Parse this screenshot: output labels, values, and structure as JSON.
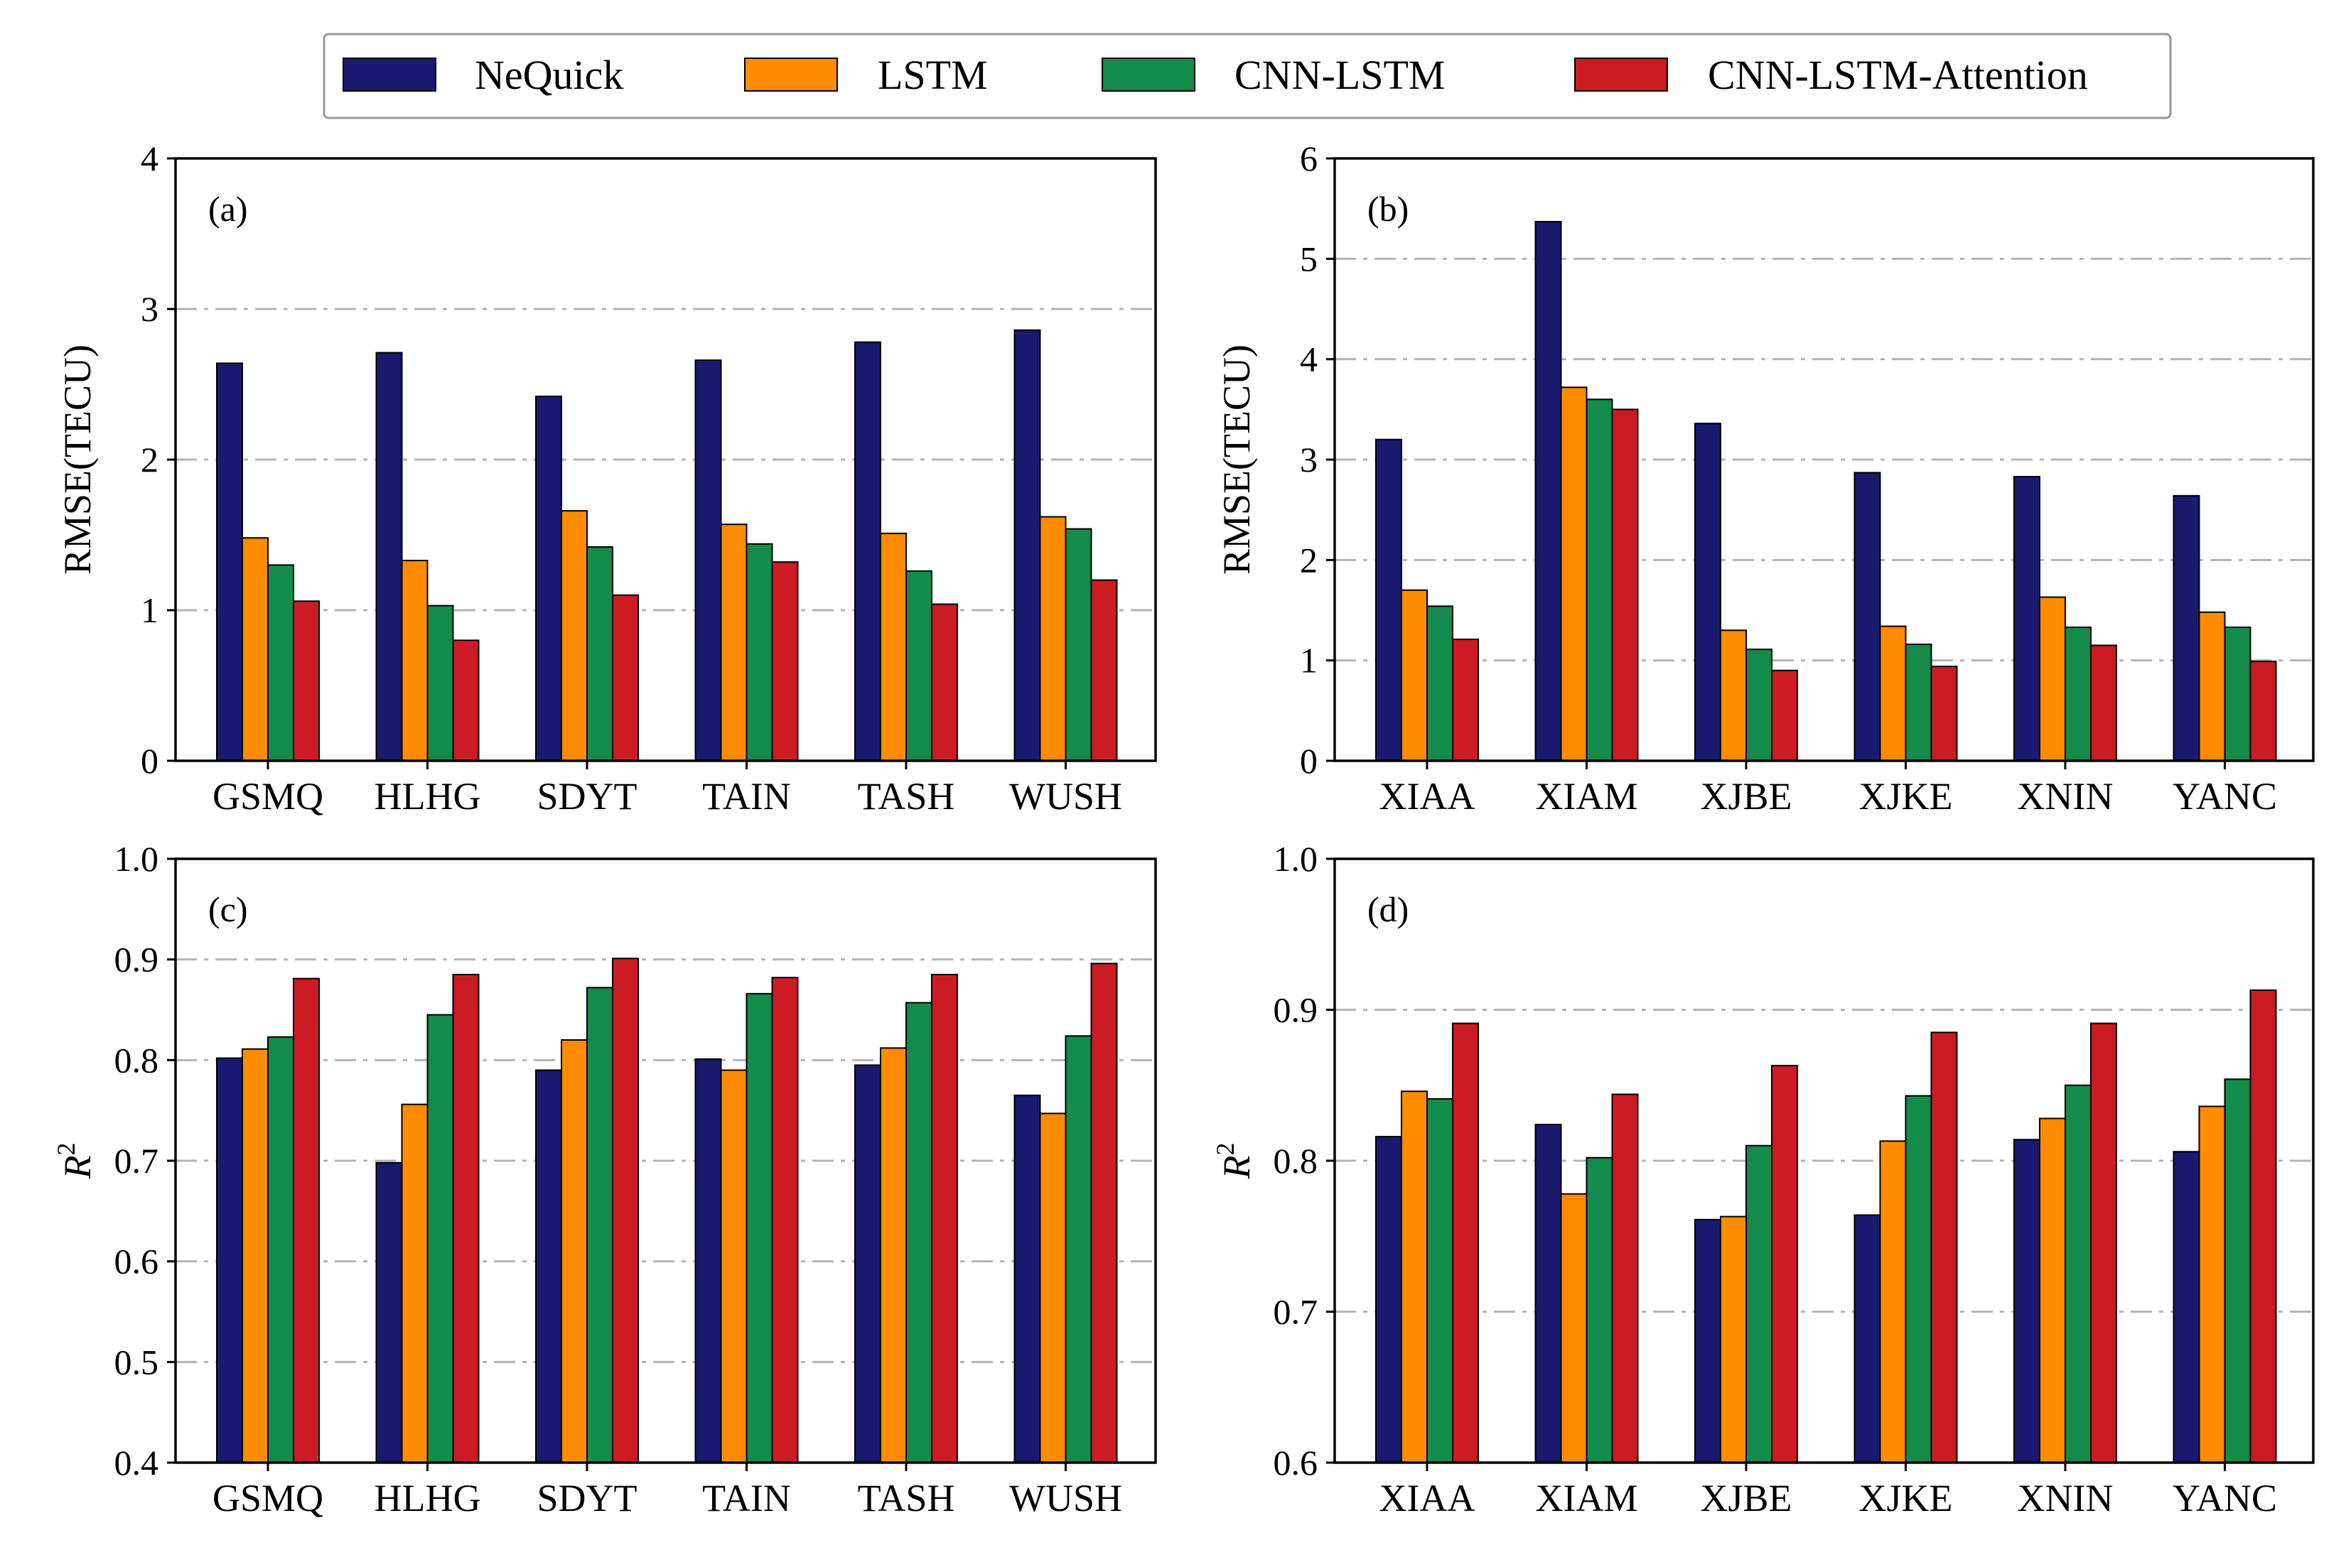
{
  "legend": [
    {
      "name": "NeQuick",
      "color": "#191970"
    },
    {
      "name": "LSTM",
      "color": "#FF8C00"
    },
    {
      "name": "CNN-LSTM",
      "color": "#138B4B"
    },
    {
      "name": "CNN-LSTM-Attention",
      "color": "#CC1B22"
    }
  ],
  "chart_data": [
    {
      "type": "bar",
      "panel": "(a)",
      "ylabel": "RMSE(TECU)",
      "ylabel_kind": "text",
      "ylim": [
        0,
        4
      ],
      "yticks": [
        0,
        1,
        2,
        3,
        4
      ],
      "tick_decimals": 0,
      "grid": "horizontal dash-dot",
      "categories": [
        "GSMQ",
        "HLHG",
        "SDYT",
        "TAIN",
        "TASH",
        "WUSH"
      ],
      "series": [
        {
          "name": "NeQuick",
          "values": [
            2.64,
            2.71,
            2.42,
            2.66,
            2.78,
            2.86
          ]
        },
        {
          "name": "LSTM",
          "values": [
            1.48,
            1.33,
            1.66,
            1.57,
            1.51,
            1.62
          ]
        },
        {
          "name": "CNN-LSTM",
          "values": [
            1.3,
            1.03,
            1.42,
            1.44,
            1.26,
            1.54
          ]
        },
        {
          "name": "CNN-LSTM-Attention",
          "values": [
            1.06,
            0.8,
            1.1,
            1.32,
            1.04,
            1.2
          ]
        }
      ]
    },
    {
      "type": "bar",
      "panel": "(b)",
      "ylabel": "RMSE(TECU)",
      "ylabel_kind": "text",
      "ylim": [
        0,
        6
      ],
      "yticks": [
        0,
        1,
        2,
        3,
        4,
        5,
        6
      ],
      "tick_decimals": 0,
      "grid": "horizontal dash-dot",
      "categories": [
        "XIAA",
        "XIAM",
        "XJBE",
        "XJKE",
        "XNIN",
        "YANC"
      ],
      "series": [
        {
          "name": "NeQuick",
          "values": [
            3.2,
            5.37,
            3.36,
            2.87,
            2.83,
            2.64
          ]
        },
        {
          "name": "LSTM",
          "values": [
            1.7,
            3.72,
            1.3,
            1.34,
            1.63,
            1.48
          ]
        },
        {
          "name": "CNN-LSTM",
          "values": [
            1.54,
            3.6,
            1.11,
            1.16,
            1.33,
            1.33
          ]
        },
        {
          "name": "CNN-LSTM-Attention",
          "values": [
            1.21,
            3.5,
            0.9,
            0.94,
            1.15,
            0.99
          ]
        }
      ]
    },
    {
      "type": "bar",
      "panel": "(c)",
      "ylabel": "R2",
      "ylabel_kind": "r2",
      "ylim": [
        0.4,
        1.0
      ],
      "yticks": [
        0.4,
        0.5,
        0.6,
        0.7,
        0.8,
        0.9,
        1.0
      ],
      "tick_decimals": 1,
      "grid": "horizontal dash-dot",
      "categories": [
        "GSMQ",
        "HLHG",
        "SDYT",
        "TAIN",
        "TASH",
        "WUSH"
      ],
      "series": [
        {
          "name": "NeQuick",
          "values": [
            0.802,
            0.698,
            0.79,
            0.801,
            0.795,
            0.765
          ]
        },
        {
          "name": "LSTM",
          "values": [
            0.811,
            0.756,
            0.82,
            0.79,
            0.812,
            0.747
          ]
        },
        {
          "name": "CNN-LSTM",
          "values": [
            0.823,
            0.845,
            0.872,
            0.866,
            0.857,
            0.824
          ]
        },
        {
          "name": "CNN-LSTM-Attention",
          "values": [
            0.881,
            0.885,
            0.901,
            0.882,
            0.885,
            0.896
          ]
        }
      ]
    },
    {
      "type": "bar",
      "panel": "(d)",
      "ylabel": "R2",
      "ylabel_kind": "r2",
      "ylim": [
        0.6,
        1.0
      ],
      "yticks": [
        0.6,
        0.7,
        0.8,
        0.9,
        1.0
      ],
      "tick_decimals": 1,
      "grid": "horizontal dash-dot",
      "categories": [
        "XIAA",
        "XIAM",
        "XJBE",
        "XJKE",
        "XNIN",
        "YANC"
      ],
      "series": [
        {
          "name": "NeQuick",
          "values": [
            0.816,
            0.824,
            0.761,
            0.764,
            0.814,
            0.806
          ]
        },
        {
          "name": "LSTM",
          "values": [
            0.846,
            0.778,
            0.763,
            0.813,
            0.828,
            0.836
          ]
        },
        {
          "name": "CNN-LSTM",
          "values": [
            0.841,
            0.802,
            0.81,
            0.843,
            0.85,
            0.854
          ]
        },
        {
          "name": "CNN-LSTM-Attention",
          "values": [
            0.891,
            0.844,
            0.863,
            0.885,
            0.891,
            0.913
          ]
        }
      ]
    }
  ]
}
